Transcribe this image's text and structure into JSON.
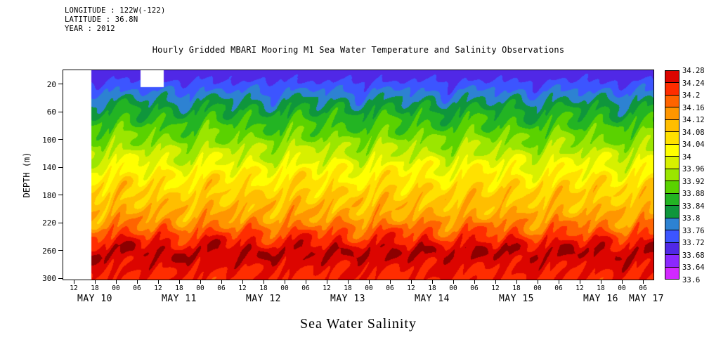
{
  "header": {
    "info_lines": [
      "LONGITUDE : 122W(-122)",
      "LATITUDE : 36.8N",
      "YEAR : 2012"
    ],
    "title": "Hourly Gridded MBARI Mooring M1 Sea Water Temperature and Salinity Observations"
  },
  "footer": {
    "label": "Sea Water Salinity"
  },
  "axes": {
    "y_label": "DEPTH (m)",
    "y_ticks": [
      "20",
      "60",
      "100",
      "140",
      "180",
      "220",
      "260",
      "300"
    ],
    "x_hour_ticks": [
      "12",
      "18",
      "00",
      "06",
      "12",
      "18",
      "00",
      "06",
      "12",
      "18",
      "00",
      "06",
      "12",
      "18",
      "00",
      "06",
      "12",
      "18",
      "00",
      "06",
      "12",
      "18",
      "00",
      "06",
      "12",
      "18",
      "00",
      "06"
    ],
    "x_date_labels": [
      "MAY 10",
      "MAY 11",
      "MAY 12",
      "MAY 13",
      "MAY 14",
      "MAY 15",
      "MAY 16",
      "MAY 17"
    ]
  },
  "colorbar": {
    "labels_top_to_bottom": [
      "34.28",
      "34.24",
      "34.2",
      "34.16",
      "34.12",
      "34.08",
      "34.04",
      "34",
      "33.96",
      "33.92",
      "33.88",
      "33.84",
      "33.8",
      "33.76",
      "33.72",
      "33.68",
      "33.64",
      "33.6"
    ],
    "colors_low_to_high": [
      "#ff32ff",
      "#d228ff",
      "#8c28ff",
      "#5028e6",
      "#3c55ff",
      "#2d82d2",
      "#0f963c",
      "#23b423",
      "#5ad200",
      "#9be600",
      "#d7f000",
      "#ffff00",
      "#ffe100",
      "#ffbe00",
      "#ff9600",
      "#ff6400",
      "#ff2d00",
      "#dc0500",
      "#8c0000"
    ]
  },
  "chart_data": {
    "type": "heatmap",
    "title": "Hourly Gridded MBARI Mooring M1 Sea Water Temperature and Salinity Observations",
    "xlabel": "Sea Water Salinity",
    "ylabel": "DEPTH (m)",
    "x_range_hours": [
      9,
      177
    ],
    "x_tick_start_h": 12,
    "x_tick_step_h": 6,
    "date_center_hours": [
      18,
      42,
      66,
      90,
      114,
      138,
      162,
      175
    ],
    "depth_range_m": [
      0,
      302
    ],
    "depth_ticks_m": [
      20,
      60,
      100,
      140,
      180,
      220,
      260,
      300
    ],
    "levels": {
      "min": 33.6,
      "max": 34.28,
      "step": 0.04
    },
    "salinity_profile": [
      [
        0,
        33.7
      ],
      [
        12,
        33.71
      ],
      [
        25,
        33.745
      ],
      [
        40,
        33.79
      ],
      [
        55,
        33.835
      ],
      [
        75,
        33.875
      ],
      [
        95,
        33.915
      ],
      [
        115,
        33.955
      ],
      [
        135,
        34.0
      ],
      [
        155,
        34.045
      ],
      [
        175,
        34.08
      ],
      [
        195,
        34.1
      ],
      [
        215,
        34.13
      ],
      [
        230,
        34.18
      ],
      [
        248,
        34.24
      ],
      [
        262,
        34.285
      ],
      [
        276,
        34.26
      ],
      [
        290,
        34.24
      ],
      [
        300,
        34.23
      ]
    ],
    "internal_tide": {
      "period1_h": 12.42,
      "amplitude1_m": 10,
      "phase1": 1.2,
      "period2_h": 25.0,
      "amplitude2_m": 5,
      "phase2": 0.5
    },
    "patch_noise": {
      "amplitude": 0.02
    },
    "data_gaps": [
      {
        "t_start_h": 9,
        "t_end_h": 17,
        "z_top_m": 0,
        "z_bottom_m": 302
      },
      {
        "t_start_h": 31,
        "t_end_h": 37.5,
        "z_top_m": 0,
        "z_bottom_m": 24
      }
    ]
  }
}
